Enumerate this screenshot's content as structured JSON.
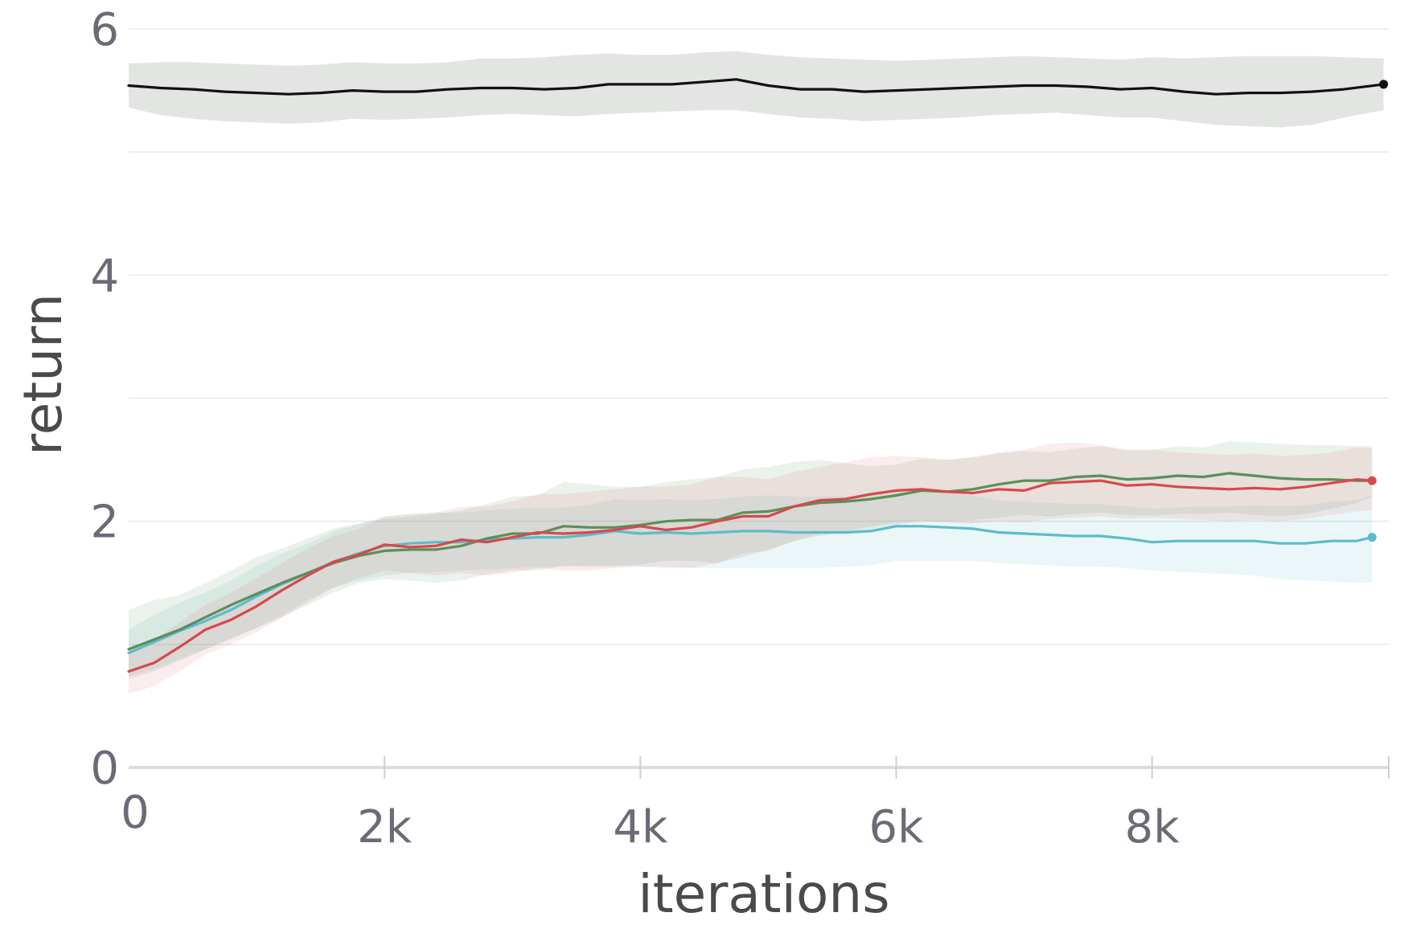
{
  "chart_data": {
    "type": "line",
    "title": "",
    "xlabel": "iterations",
    "ylabel": "return",
    "xlim": [
      0,
      9850
    ],
    "ylim": [
      0,
      6.1
    ],
    "x_ticks": [
      {
        "value": 0,
        "label": "0"
      },
      {
        "value": 2000,
        "label": "2k"
      },
      {
        "value": 4000,
        "label": "4k"
      },
      {
        "value": 6000,
        "label": "6k"
      },
      {
        "value": 8000,
        "label": "8k"
      }
    ],
    "y_ticks": [
      {
        "value": 0,
        "label": "0"
      },
      {
        "value": 2,
        "label": "2"
      },
      {
        "value": 4,
        "label": "4"
      },
      {
        "value": 6,
        "label": "6"
      }
    ],
    "y_gridlines": [
      0,
      1,
      2,
      3,
      4,
      5,
      6
    ],
    "grid": true,
    "legend": "none",
    "series": [
      {
        "color": "#111111",
        "band_color": "#e3e5e3",
        "band_opacity": 1,
        "end_marker": true,
        "x": [
          0,
          250,
          500,
          750,
          1000,
          1250,
          1500,
          1750,
          2000,
          2250,
          2500,
          2750,
          3000,
          3250,
          3500,
          3750,
          4000,
          4250,
          4500,
          4750,
          5000,
          5250,
          5500,
          5750,
          6000,
          6250,
          6500,
          6750,
          7000,
          7250,
          7500,
          7750,
          8000,
          8250,
          8500,
          8750,
          9000,
          9250,
          9500,
          9810
        ],
        "mean": [
          5.54,
          5.52,
          5.51,
          5.49,
          5.48,
          5.47,
          5.48,
          5.5,
          5.49,
          5.49,
          5.51,
          5.52,
          5.52,
          5.51,
          5.52,
          5.55,
          5.55,
          5.55,
          5.57,
          5.59,
          5.54,
          5.51,
          5.51,
          5.49,
          5.5,
          5.51,
          5.52,
          5.53,
          5.54,
          5.54,
          5.53,
          5.51,
          5.52,
          5.49,
          5.47,
          5.48,
          5.48,
          5.49,
          5.51,
          5.55
        ],
        "lower": [
          5.36,
          5.3,
          5.27,
          5.25,
          5.24,
          5.23,
          5.24,
          5.27,
          5.26,
          5.27,
          5.28,
          5.3,
          5.31,
          5.3,
          5.29,
          5.31,
          5.32,
          5.33,
          5.34,
          5.34,
          5.31,
          5.28,
          5.27,
          5.25,
          5.26,
          5.27,
          5.28,
          5.3,
          5.31,
          5.32,
          5.3,
          5.28,
          5.28,
          5.25,
          5.22,
          5.21,
          5.2,
          5.22,
          5.28,
          5.34
        ],
        "upper": [
          5.72,
          5.73,
          5.73,
          5.72,
          5.71,
          5.7,
          5.71,
          5.73,
          5.72,
          5.72,
          5.73,
          5.76,
          5.76,
          5.77,
          5.79,
          5.8,
          5.79,
          5.79,
          5.81,
          5.82,
          5.79,
          5.77,
          5.76,
          5.75,
          5.74,
          5.75,
          5.76,
          5.77,
          5.78,
          5.77,
          5.76,
          5.75,
          5.77,
          5.76,
          5.77,
          5.78,
          5.78,
          5.78,
          5.77,
          5.76
        ]
      },
      {
        "color": "#5bbccc",
        "band_color": "#5bbccc",
        "band_opacity": 0.13,
        "end_marker": true,
        "x": [
          0,
          200,
          400,
          600,
          800,
          1000,
          1200,
          1400,
          1600,
          1800,
          2000,
          2200,
          2400,
          2600,
          2800,
          3000,
          3200,
          3400,
          3600,
          3800,
          4000,
          4200,
          4400,
          4600,
          4800,
          5000,
          5200,
          5400,
          5600,
          5800,
          6000,
          6200,
          6400,
          6600,
          6800,
          7000,
          7200,
          7400,
          7600,
          7800,
          8000,
          8200,
          8400,
          8600,
          8800,
          9000,
          9200,
          9400,
          9600,
          9720
        ],
        "mean": [
          0.93,
          1.02,
          1.11,
          1.19,
          1.28,
          1.39,
          1.49,
          1.58,
          1.67,
          1.74,
          1.8,
          1.82,
          1.83,
          1.83,
          1.85,
          1.86,
          1.87,
          1.87,
          1.89,
          1.92,
          1.9,
          1.91,
          1.9,
          1.91,
          1.92,
          1.92,
          1.91,
          1.91,
          1.91,
          1.92,
          1.96,
          1.96,
          1.95,
          1.94,
          1.91,
          1.9,
          1.89,
          1.88,
          1.88,
          1.86,
          1.83,
          1.84,
          1.84,
          1.84,
          1.84,
          1.82,
          1.82,
          1.84,
          1.84,
          1.87
        ],
        "lower": [
          0.74,
          0.8,
          0.88,
          0.96,
          1.04,
          1.14,
          1.24,
          1.36,
          1.46,
          1.52,
          1.56,
          1.58,
          1.59,
          1.6,
          1.61,
          1.62,
          1.63,
          1.63,
          1.64,
          1.64,
          1.63,
          1.63,
          1.62,
          1.62,
          1.62,
          1.62,
          1.62,
          1.62,
          1.63,
          1.64,
          1.68,
          1.68,
          1.68,
          1.68,
          1.66,
          1.65,
          1.64,
          1.63,
          1.63,
          1.62,
          1.6,
          1.59,
          1.58,
          1.57,
          1.56,
          1.53,
          1.52,
          1.51,
          1.5,
          1.5
        ],
        "upper": [
          1.12,
          1.24,
          1.34,
          1.42,
          1.52,
          1.64,
          1.74,
          1.82,
          1.92,
          1.98,
          2.04,
          2.06,
          2.07,
          2.07,
          2.09,
          2.1,
          2.11,
          2.11,
          2.13,
          2.18,
          2.17,
          2.18,
          2.17,
          2.18,
          2.2,
          2.21,
          2.2,
          2.2,
          2.2,
          2.21,
          2.24,
          2.25,
          2.23,
          2.21,
          2.17,
          2.16,
          2.15,
          2.14,
          2.14,
          2.12,
          2.1,
          2.11,
          2.12,
          2.12,
          2.13,
          2.12,
          2.13,
          2.16,
          2.17,
          2.21
        ]
      },
      {
        "color": "#5a8f5a",
        "band_color": "#5a8f5a",
        "band_opacity": 0.12,
        "end_marker": false,
        "x": [
          0,
          200,
          400,
          600,
          800,
          1000,
          1200,
          1400,
          1600,
          1800,
          2000,
          2200,
          2400,
          2600,
          2800,
          3000,
          3200,
          3400,
          3600,
          3800,
          4000,
          4200,
          4400,
          4600,
          4800,
          5000,
          5200,
          5400,
          5600,
          5800,
          6000,
          6200,
          6400,
          6600,
          6800,
          7000,
          7200,
          7400,
          7600,
          7800,
          8000,
          8200,
          8400,
          8600,
          8800,
          9000,
          9200,
          9400,
          9600,
          9720
        ],
        "mean": [
          0.96,
          1.04,
          1.12,
          1.22,
          1.32,
          1.41,
          1.5,
          1.58,
          1.66,
          1.72,
          1.76,
          1.77,
          1.77,
          1.8,
          1.86,
          1.9,
          1.9,
          1.96,
          1.95,
          1.95,
          1.97,
          2.0,
          2.01,
          2.01,
          2.07,
          2.08,
          2.12,
          2.15,
          2.16,
          2.18,
          2.21,
          2.25,
          2.24,
          2.26,
          2.3,
          2.33,
          2.33,
          2.36,
          2.37,
          2.34,
          2.35,
          2.37,
          2.36,
          2.39,
          2.37,
          2.35,
          2.34,
          2.34,
          2.33,
          2.33
        ],
        "lower": [
          0.72,
          0.78,
          0.87,
          0.96,
          1.05,
          1.13,
          1.22,
          1.32,
          1.42,
          1.5,
          1.53,
          1.52,
          1.5,
          1.52,
          1.57,
          1.6,
          1.6,
          1.64,
          1.63,
          1.63,
          1.65,
          1.68,
          1.68,
          1.66,
          1.71,
          1.77,
          1.84,
          1.88,
          1.91,
          1.94,
          1.97,
          2.0,
          2.0,
          2.01,
          2.03,
          2.05,
          2.04,
          2.06,
          2.07,
          2.05,
          2.05,
          2.06,
          2.06,
          2.07,
          2.05,
          2.04,
          2.06,
          2.1,
          2.15,
          2.2
        ],
        "upper": [
          1.28,
          1.36,
          1.4,
          1.5,
          1.6,
          1.71,
          1.78,
          1.86,
          1.94,
          1.98,
          2.02,
          2.04,
          2.06,
          2.09,
          2.14,
          2.2,
          2.21,
          2.32,
          2.3,
          2.28,
          2.28,
          2.32,
          2.34,
          2.36,
          2.42,
          2.44,
          2.48,
          2.5,
          2.47,
          2.45,
          2.46,
          2.51,
          2.5,
          2.52,
          2.55,
          2.57,
          2.56,
          2.59,
          2.61,
          2.58,
          2.58,
          2.61,
          2.6,
          2.65,
          2.64,
          2.63,
          2.62,
          2.62,
          2.61,
          2.61
        ]
      },
      {
        "color": "#d6494c",
        "band_color": "#d6494c",
        "band_opacity": 0.1,
        "end_marker": true,
        "x": [
          0,
          200,
          400,
          600,
          800,
          1000,
          1200,
          1400,
          1600,
          1800,
          2000,
          2200,
          2400,
          2600,
          2800,
          3000,
          3200,
          3400,
          3600,
          3800,
          4000,
          4200,
          4400,
          4600,
          4800,
          5000,
          5200,
          5400,
          5600,
          5800,
          6000,
          6200,
          6400,
          6600,
          6800,
          7000,
          7200,
          7400,
          7600,
          7800,
          8000,
          8200,
          8400,
          8600,
          8800,
          9000,
          9200,
          9400,
          9600,
          9720
        ],
        "mean": [
          0.78,
          0.85,
          0.98,
          1.12,
          1.2,
          1.31,
          1.44,
          1.56,
          1.67,
          1.73,
          1.81,
          1.79,
          1.8,
          1.85,
          1.83,
          1.87,
          1.91,
          1.9,
          1.91,
          1.93,
          1.96,
          1.93,
          1.95,
          2.0,
          2.04,
          2.04,
          2.12,
          2.17,
          2.18,
          2.22,
          2.25,
          2.26,
          2.24,
          2.23,
          2.26,
          2.25,
          2.31,
          2.32,
          2.33,
          2.29,
          2.3,
          2.28,
          2.27,
          2.26,
          2.27,
          2.26,
          2.28,
          2.31,
          2.34,
          2.33
        ],
        "lower": [
          0.6,
          0.66,
          0.78,
          0.92,
          1.0,
          1.1,
          1.22,
          1.34,
          1.46,
          1.54,
          1.6,
          1.58,
          1.56,
          1.58,
          1.56,
          1.58,
          1.62,
          1.6,
          1.6,
          1.62,
          1.63,
          1.62,
          1.62,
          1.66,
          1.74,
          1.76,
          1.84,
          1.9,
          1.92,
          1.96,
          1.99,
          2.0,
          1.99,
          1.98,
          2.0,
          1.99,
          2.02,
          2.03,
          2.04,
          2.02,
          2.03,
          2.02,
          2.01,
          2.0,
          2.01,
          2.0,
          2.02,
          2.05,
          2.08,
          2.09
        ],
        "upper": [
          0.96,
          1.04,
          1.18,
          1.32,
          1.42,
          1.54,
          1.66,
          1.78,
          1.88,
          1.94,
          2.04,
          2.06,
          2.07,
          2.12,
          2.12,
          2.16,
          2.22,
          2.22,
          2.24,
          2.26,
          2.28,
          2.28,
          2.3,
          2.36,
          2.36,
          2.34,
          2.4,
          2.44,
          2.48,
          2.52,
          2.53,
          2.52,
          2.5,
          2.52,
          2.56,
          2.58,
          2.63,
          2.64,
          2.62,
          2.58,
          2.58,
          2.56,
          2.55,
          2.54,
          2.55,
          2.53,
          2.54,
          2.56,
          2.6,
          2.59
        ]
      }
    ]
  }
}
